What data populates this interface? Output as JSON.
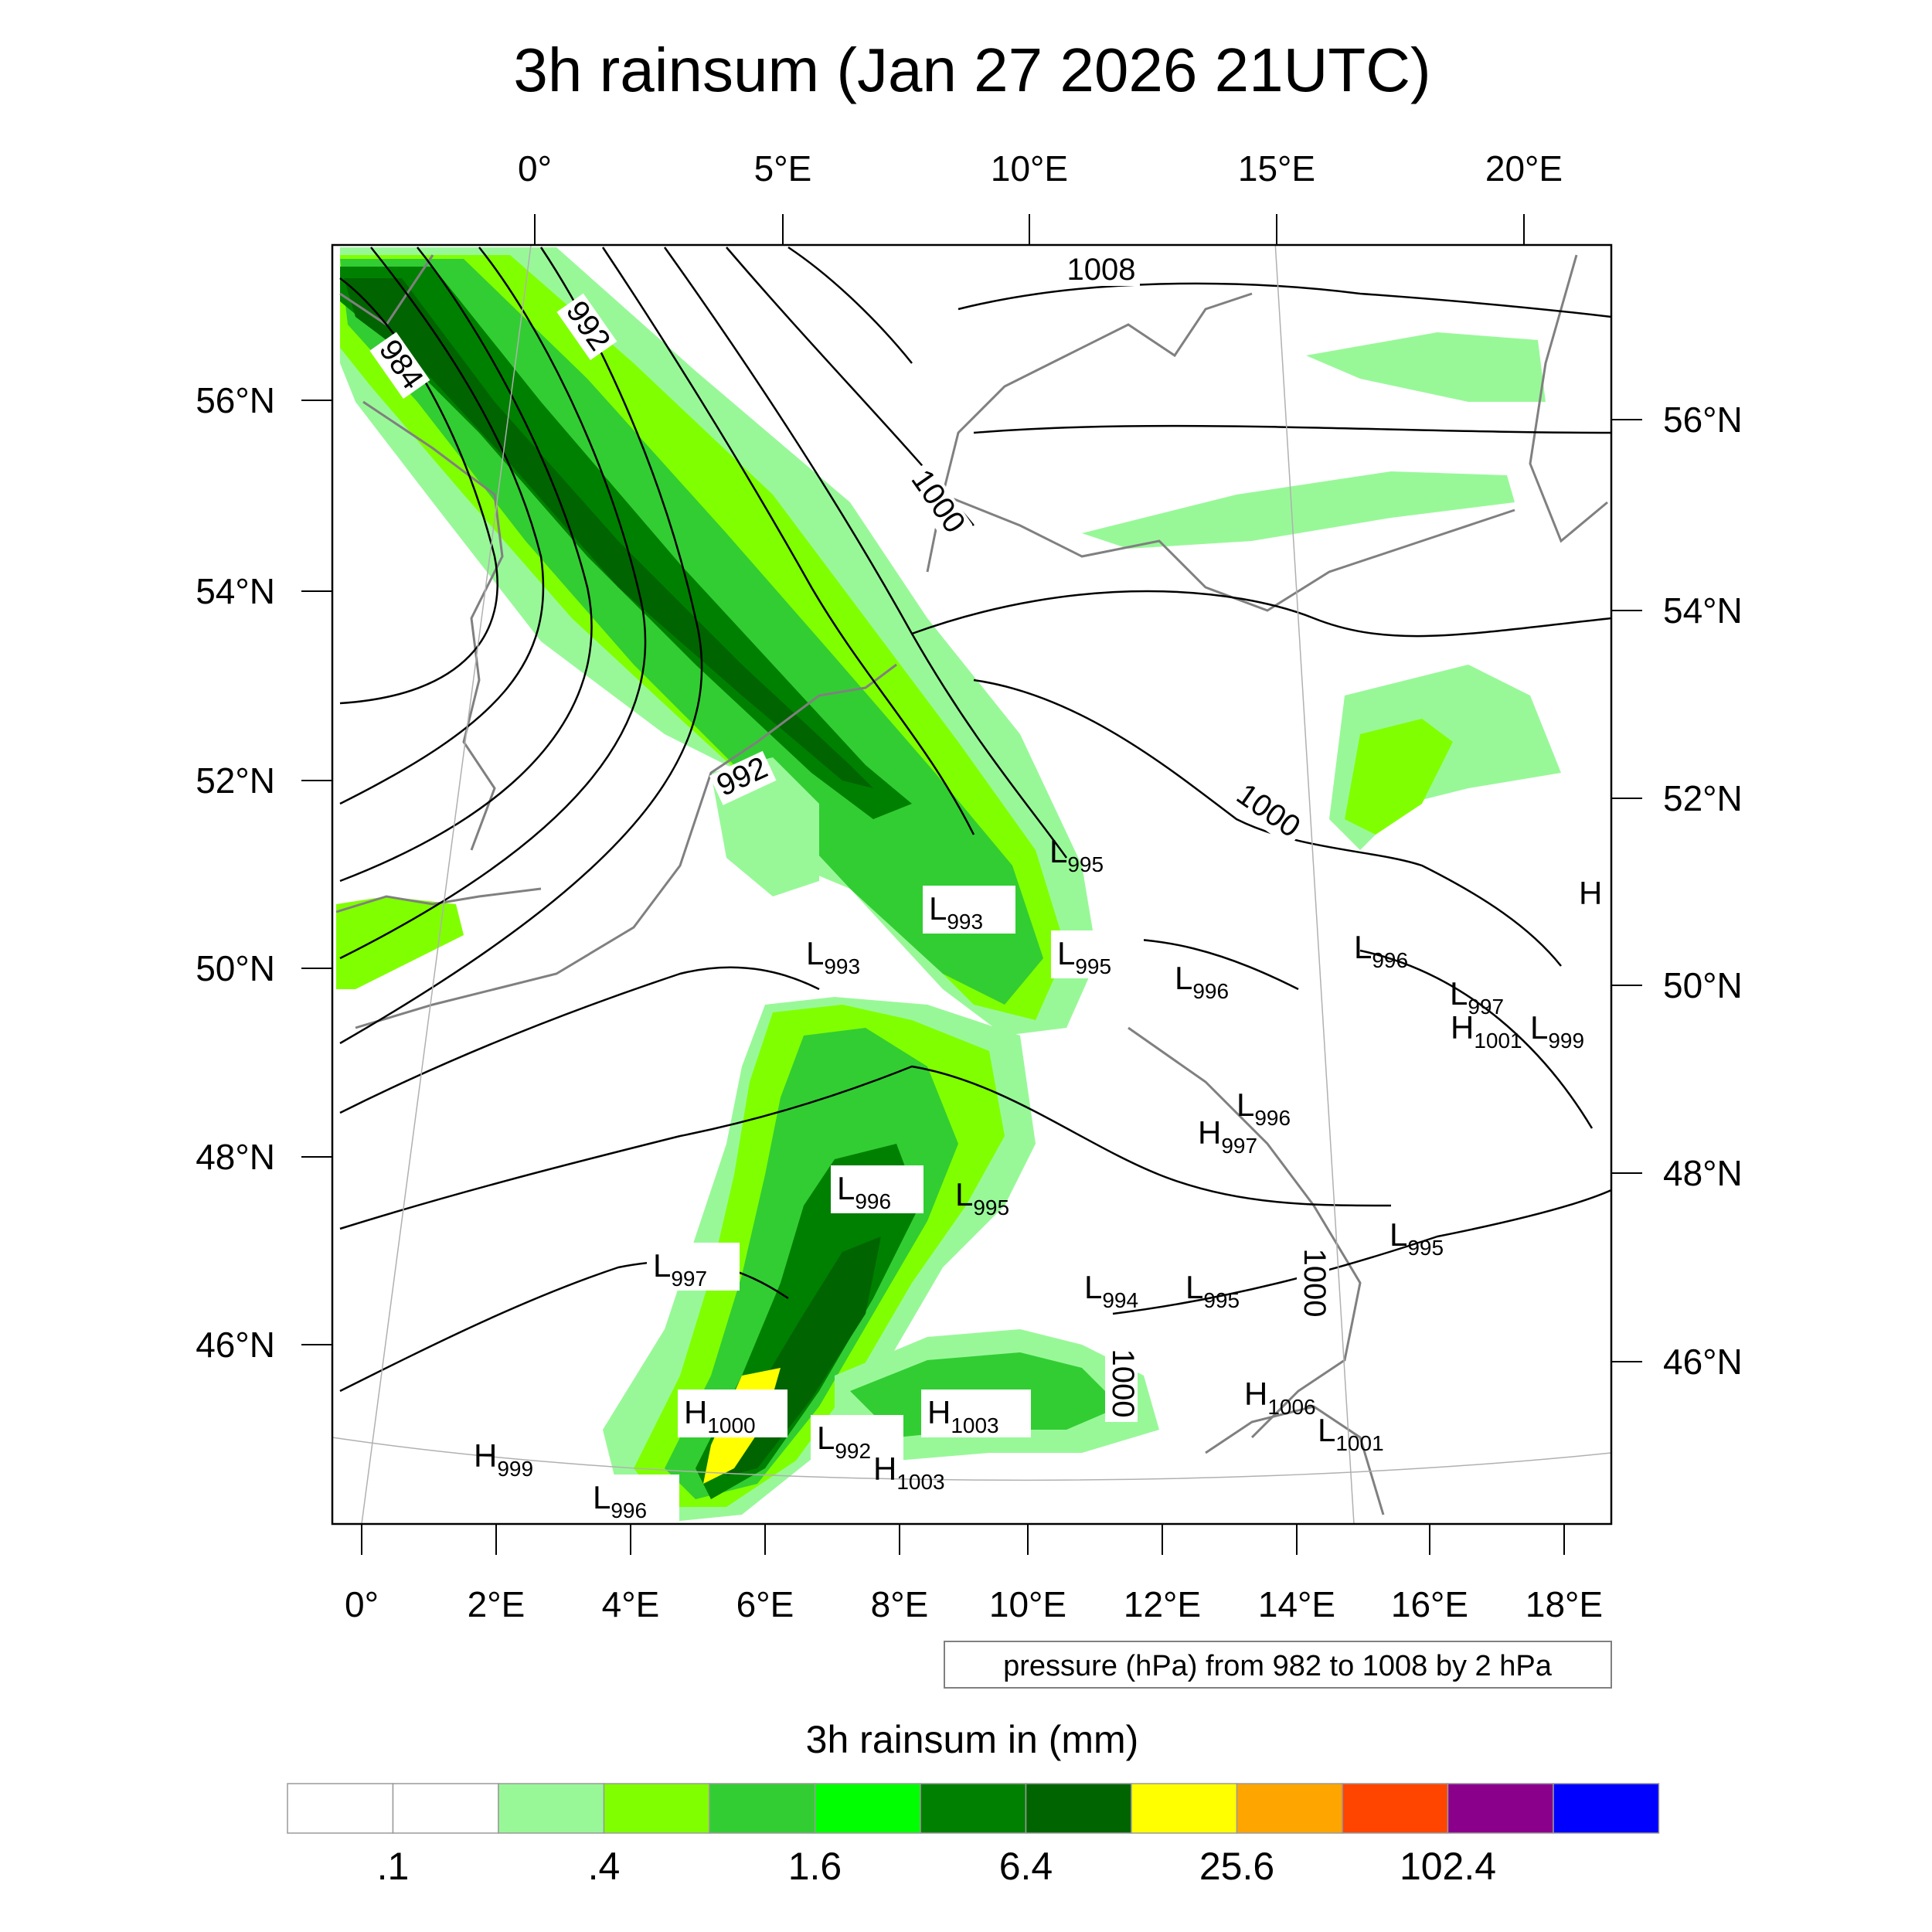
{
  "title": "3h rainsum (Jan 27 2026 21UTC)",
  "axes": {
    "top_lon_labels": [
      "0°",
      "5°E",
      "10°E",
      "15°E",
      "20°E"
    ],
    "bottom_lon_labels": [
      "0°",
      "2°E",
      "4°E",
      "6°E",
      "8°E",
      "10°E",
      "12°E",
      "14°E",
      "16°E",
      "18°E"
    ],
    "left_lat_labels": [
      "56°N",
      "54°N",
      "52°N",
      "50°N",
      "48°N",
      "46°N"
    ],
    "right_lat_labels": [
      "56°N",
      "54°N",
      "52°N",
      "50°N",
      "48°N",
      "46°N"
    ]
  },
  "isobar_labels": [
    "984",
    "992",
    "1008",
    "1000",
    "992",
    "1000",
    "1000",
    "1000"
  ],
  "pressure_centers": [
    {
      "type": "L",
      "value": "995"
    },
    {
      "type": "L",
      "value": "993"
    },
    {
      "type": "L",
      "value": "993"
    },
    {
      "type": "L",
      "value": "995"
    },
    {
      "type": "L",
      "value": "996"
    },
    {
      "type": "L",
      "value": "996"
    },
    {
      "type": "L",
      "value": "997"
    },
    {
      "type": "H",
      "value": "1001"
    },
    {
      "type": "L",
      "value": "999"
    },
    {
      "type": "L",
      "value": "996"
    },
    {
      "type": "H",
      "value": "997"
    },
    {
      "type": "L",
      "value": "996"
    },
    {
      "type": "L",
      "value": "995"
    },
    {
      "type": "L",
      "value": "997"
    },
    {
      "type": "L",
      "value": "995"
    },
    {
      "type": "L",
      "value": "994"
    },
    {
      "type": "L",
      "value": "995"
    },
    {
      "type": "H",
      "value": "1000"
    },
    {
      "type": "H",
      "value": "1003"
    },
    {
      "type": "L",
      "value": "992"
    },
    {
      "type": "H",
      "value": "1003"
    },
    {
      "type": "H",
      "value": "999"
    },
    {
      "type": "L",
      "value": "996"
    },
    {
      "type": "H",
      "value": "1006"
    },
    {
      "type": "L",
      "value": "1001"
    },
    {
      "type": "H",
      "value": ""
    }
  ],
  "info_box": "pressure (hPa) from 982 to 1008 by 2 hPa",
  "colorbar": {
    "title": "3h rainsum in (mm)",
    "colors": [
      "#ffffff",
      "#ffffff",
      "#98f898",
      "#80ff00",
      "#32cd32",
      "#00ff00",
      "#008000",
      "#006400",
      "#ffff00",
      "#ffa500",
      "#ff4500",
      "#8b008b",
      "#0000ff"
    ],
    "tick_labels": [
      ".1",
      ".4",
      "1.6",
      "6.4",
      "25.6",
      "102.4"
    ],
    "tick_after_box": [
      0,
      2,
      4,
      6,
      8,
      10
    ]
  }
}
